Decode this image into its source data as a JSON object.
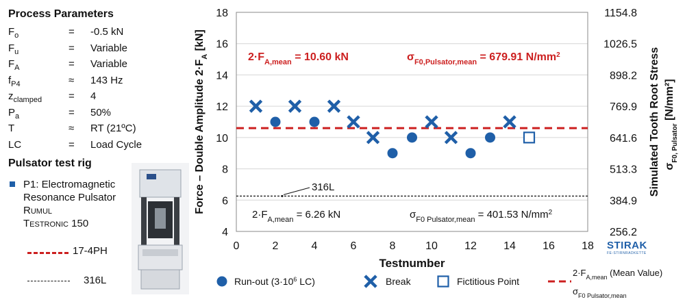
{
  "params": {
    "title": "Process Parameters",
    "rows": [
      {
        "name": "F",
        "sub": "o",
        "sym": "=",
        "val": "-0.5 kN"
      },
      {
        "name": "F",
        "sub": "u",
        "sym": "=",
        "val": "Variable"
      },
      {
        "name": "F",
        "sub": "A",
        "sym": "=",
        "val": "Variable"
      },
      {
        "name": "f",
        "sub": "P4",
        "sym": "≈",
        "val": "143 Hz"
      },
      {
        "name": "z",
        "sub": "clamped",
        "sym": "=",
        "val": "4"
      },
      {
        "name": "P",
        "sub": "a",
        "sym": "=",
        "val": "50%"
      },
      {
        "name": "T",
        "sub": "",
        "sym": "≈",
        "val": "RT (21ºC)"
      },
      {
        "name": "LC",
        "sub": "",
        "sym": "=",
        "val": "Load Cycle"
      }
    ]
  },
  "rig": {
    "title": "Pulsator test rig",
    "line1": "P1: Electromagnetic",
    "line2": "Resonance Pulsator",
    "line3": "Rumul",
    "line4": "Testronic 150",
    "legend_174": "17-4PH",
    "legend_316": "316L",
    "colors": {
      "bullet": "#1f5fa8",
      "red": "#cc1f1f"
    }
  },
  "logo": {
    "name": "STIRAK",
    "sub": "FE-STIRNRADKETTE"
  },
  "chart_data": {
    "type": "scatter",
    "xlabel": "Testnumber",
    "ylabel_left": "Force – Double Amplitude 2·F",
    "ylabel_left_sub": "A",
    "ylabel_left_unit": " [kN]",
    "ylabel_right_line1": "Simulated Tooth Root Stress",
    "ylabel_right_line2": "σ",
    "ylabel_right_line2_sub": "F0, Pulsator",
    "ylabel_right_line2_unit": " [N/mm²]",
    "xlim": [
      0,
      18
    ],
    "ylim": [
      4,
      18
    ],
    "x_ticks": [
      0,
      2,
      4,
      6,
      8,
      10,
      12,
      14,
      16,
      18
    ],
    "y_ticks": [
      4,
      6,
      8,
      10,
      12,
      14,
      16,
      18
    ],
    "y_right_ticks": [
      "256.2",
      "384.9",
      "513.3",
      "641.6",
      "769.9",
      "898.2",
      "1026.5",
      "1154.8"
    ],
    "grid": "horizontal",
    "series": [
      {
        "name": "Run-out (3·10⁶ LC)",
        "marker": "circle",
        "color": "#1f5fa8",
        "points": [
          [
            2,
            11
          ],
          [
            4,
            11
          ],
          [
            8,
            9
          ],
          [
            9,
            10
          ],
          [
            12,
            9
          ],
          [
            13,
            10
          ]
        ]
      },
      {
        "name": "Break",
        "marker": "x",
        "color": "#1f5fa8",
        "points": [
          [
            1,
            12
          ],
          [
            3,
            12
          ],
          [
            5,
            12
          ],
          [
            6,
            11
          ],
          [
            7,
            10
          ],
          [
            10,
            11
          ],
          [
            11,
            10
          ],
          [
            14,
            11
          ]
        ]
      },
      {
        "name": "Fictitious Point",
        "marker": "square-open",
        "color": "#1f5fa8",
        "points": [
          [
            15,
            10
          ]
        ]
      }
    ],
    "mean_lines": [
      {
        "material": "17-4PH",
        "y": 10.6,
        "style": "dashed",
        "color": "#cc1f1f"
      },
      {
        "material": "316L",
        "y": 6.26,
        "style": "dotted",
        "color": "#111111"
      }
    ],
    "annotations": {
      "red_fa_prefix": "2·F",
      "red_fa_sub": "A,mean",
      "red_fa_value": " = 10.60 kN",
      "red_sigma_prefix": "σ",
      "red_sigma_sub": "F0,Pulsator,mean",
      "red_sigma_value": " = 679.91 N/mm",
      "red_sigma_sup": "2",
      "label_316": "316L",
      "black_fa_prefix": "2·F",
      "black_fa_sub": "A,mean",
      "black_fa_value": " = 6.26 kN",
      "black_sigma_prefix": "σ",
      "black_sigma_sub": "F0 Pulsator,mean",
      "black_sigma_value": " = 401.53 N/mm",
      "black_sigma_sup": "2"
    },
    "legend": {
      "runout": "Run-out (3·10",
      "runout_sup": "6",
      "runout_end": " LC)",
      "break": "Break",
      "fictitious": "Fictitious Point",
      "mean_line1_prefix": "2·F",
      "mean_line1_sub": "A,mean",
      "mean_line1_end": " (Mean Value)",
      "mean_line2_prefix": "σ",
      "mean_line2_sub": "F0 Pulsator,mean"
    }
  }
}
